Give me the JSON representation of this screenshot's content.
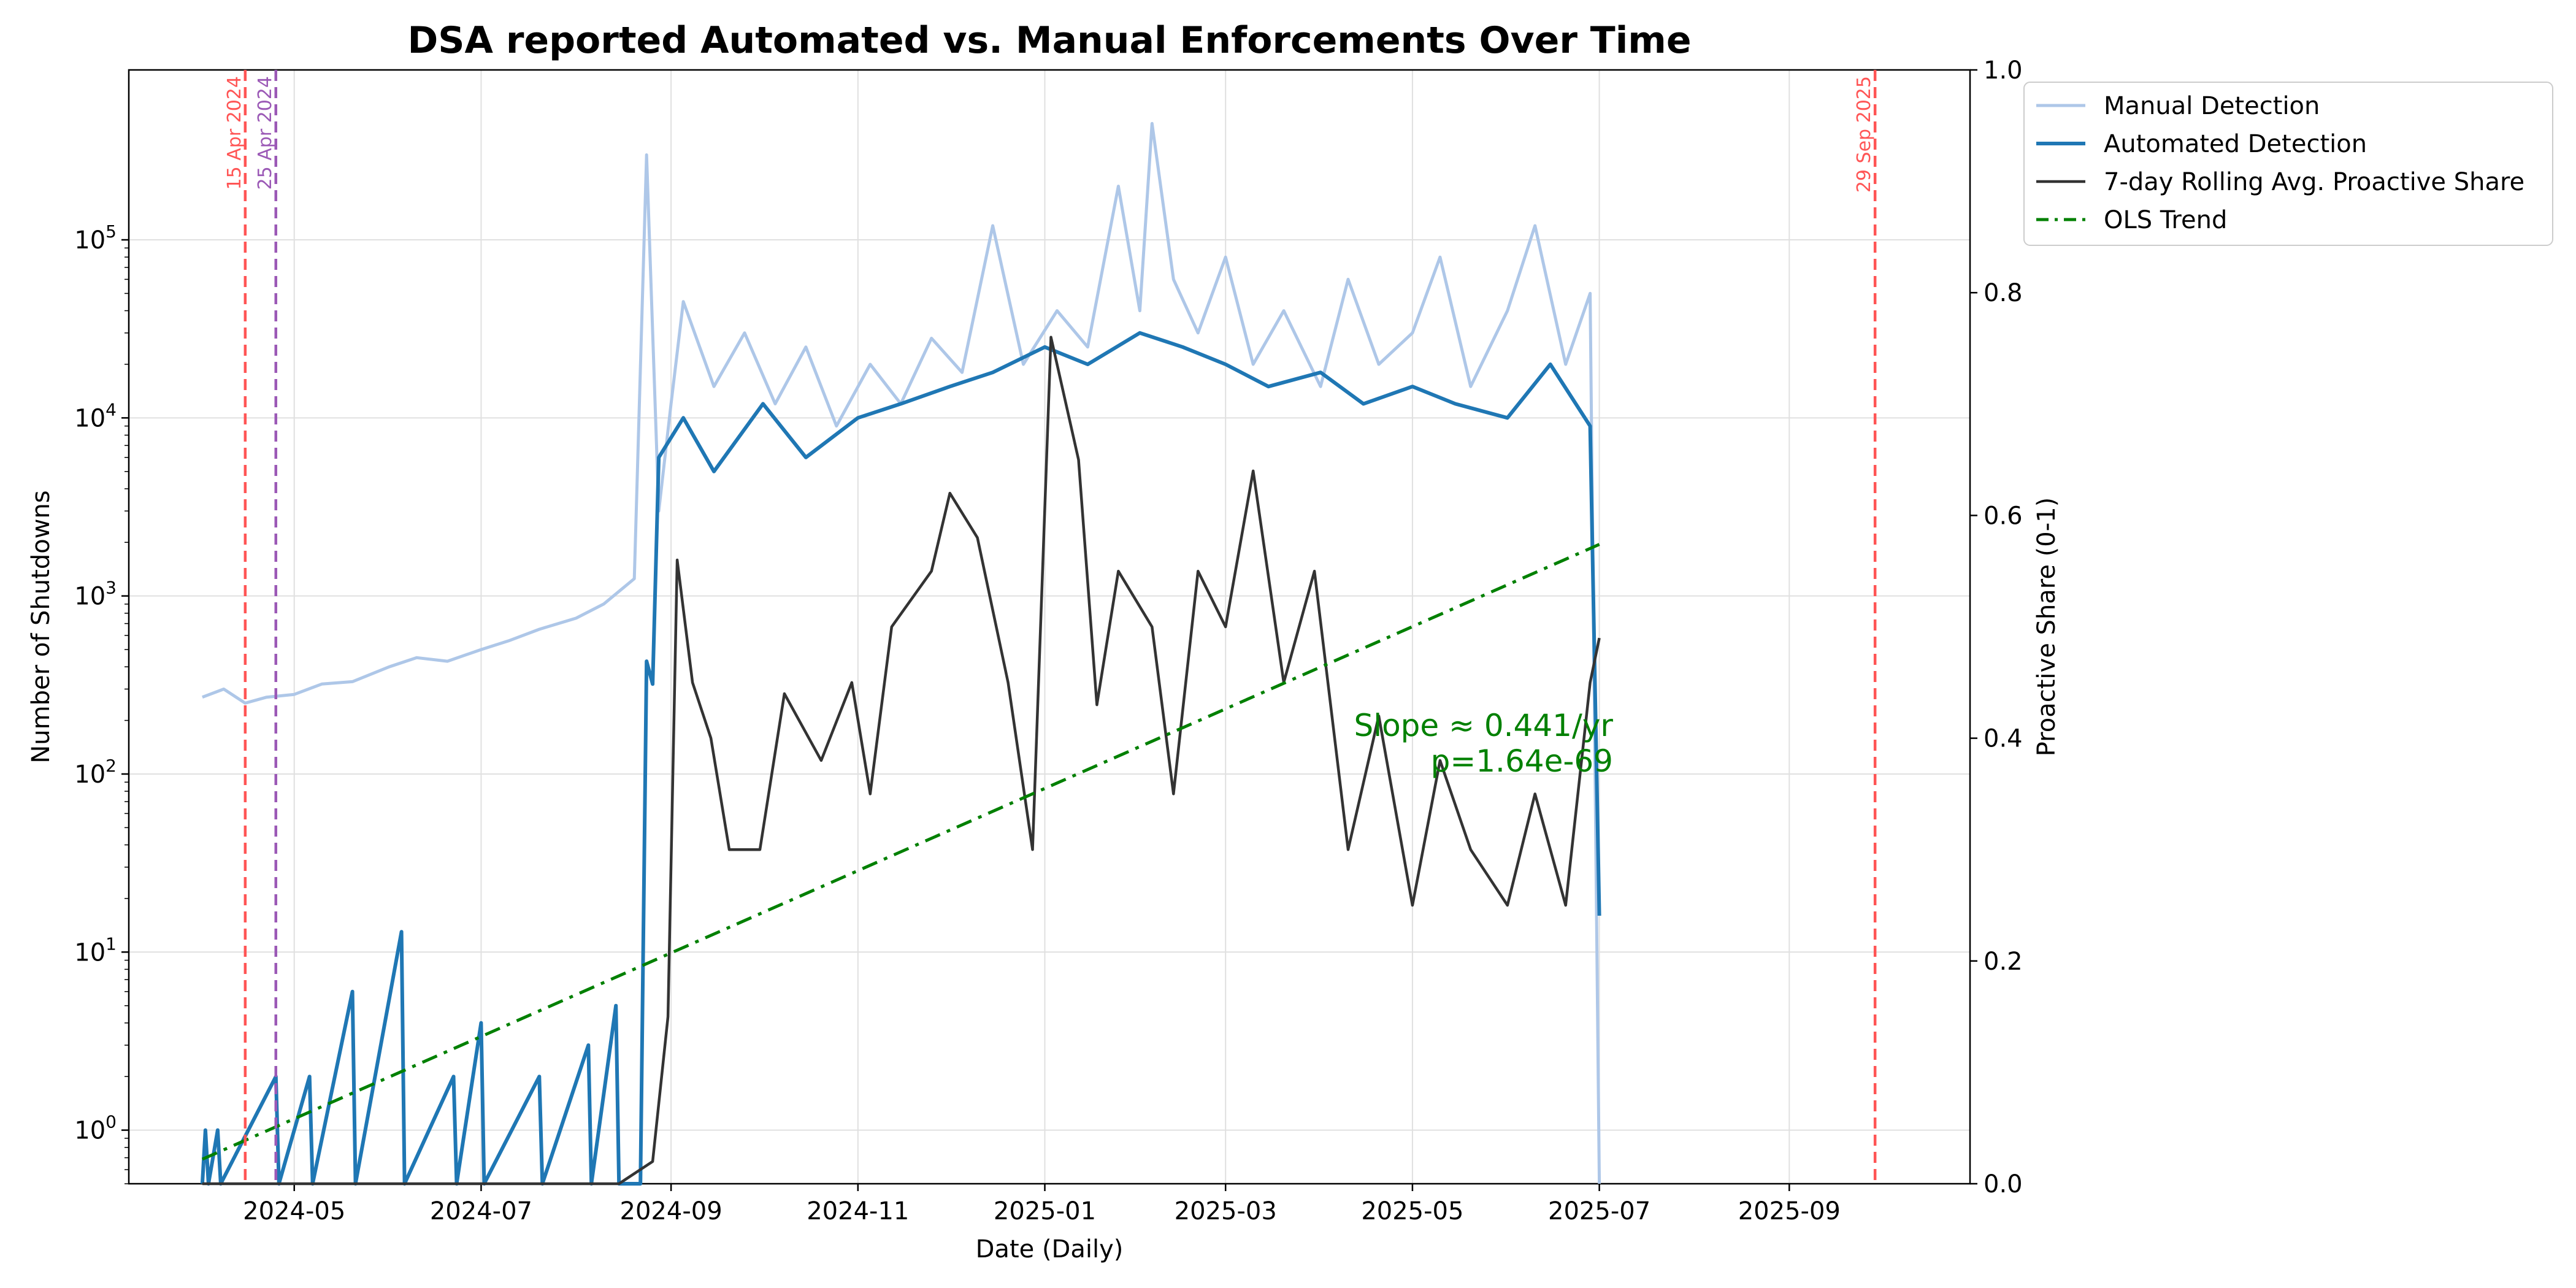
{
  "chart_data": {
    "type": "line",
    "title": "DSA reported Automated vs. Manual Enforcements Over Time",
    "xlabel": "Date (Daily)",
    "ylabel_left": "Number of Shutdowns",
    "ylabel_right": "Proactive Share (0-1)",
    "x_range": [
      "2024-03-08",
      "2025-10-30"
    ],
    "x_ticks": [
      "2024-05",
      "2024-07",
      "2024-09",
      "2024-11",
      "2025-01",
      "2025-03",
      "2025-05",
      "2025-07",
      "2025-09"
    ],
    "y_left_scale": "log",
    "y_left_range": [
      0.5,
      900000
    ],
    "y_left_ticks": [
      1,
      10,
      100,
      1000,
      10000,
      100000
    ],
    "y_left_tick_base": "10",
    "y_right_range": [
      0,
      1
    ],
    "y_right_ticks": [
      "0.0",
      "0.2",
      "0.4",
      "0.6",
      "0.8",
      "1.0"
    ],
    "grid": true,
    "legend_position": "outside-top-right",
    "series": [
      {
        "name": "Manual Detection",
        "axis": "left",
        "color": "#aec7e8",
        "points": [
          [
            "2024-04-01",
            270
          ],
          [
            "2024-04-08",
            300
          ],
          [
            "2024-04-15",
            250
          ],
          [
            "2024-04-22",
            270
          ],
          [
            "2024-05-01",
            280
          ],
          [
            "2024-05-10",
            320
          ],
          [
            "2024-05-20",
            330
          ],
          [
            "2024-06-01",
            400
          ],
          [
            "2024-06-10",
            450
          ],
          [
            "2024-06-20",
            430
          ],
          [
            "2024-07-01",
            500
          ],
          [
            "2024-07-10",
            560
          ],
          [
            "2024-07-20",
            650
          ],
          [
            "2024-08-01",
            750
          ],
          [
            "2024-08-10",
            900
          ],
          [
            "2024-08-20",
            1250
          ],
          [
            "2024-08-24",
            300000
          ],
          [
            "2024-08-28",
            3000
          ],
          [
            "2024-09-01",
            12000
          ],
          [
            "2024-09-05",
            45000
          ],
          [
            "2024-09-15",
            15000
          ],
          [
            "2024-09-25",
            30000
          ],
          [
            "2024-10-05",
            12000
          ],
          [
            "2024-10-15",
            25000
          ],
          [
            "2024-10-25",
            9000
          ],
          [
            "2024-11-05",
            20000
          ],
          [
            "2024-11-15",
            12000
          ],
          [
            "2024-11-25",
            28000
          ],
          [
            "2024-12-05",
            18000
          ],
          [
            "2024-12-15",
            120000
          ],
          [
            "2024-12-25",
            20000
          ],
          [
            "2025-01-05",
            40000
          ],
          [
            "2025-01-15",
            25000
          ],
          [
            "2025-01-25",
            200000
          ],
          [
            "2025-02-01",
            40000
          ],
          [
            "2025-02-05",
            450000
          ],
          [
            "2025-02-12",
            60000
          ],
          [
            "2025-02-20",
            30000
          ],
          [
            "2025-03-01",
            80000
          ],
          [
            "2025-03-10",
            20000
          ],
          [
            "2025-03-20",
            40000
          ],
          [
            "2025-04-01",
            15000
          ],
          [
            "2025-04-10",
            60000
          ],
          [
            "2025-04-20",
            20000
          ],
          [
            "2025-05-01",
            30000
          ],
          [
            "2025-05-10",
            80000
          ],
          [
            "2025-05-20",
            15000
          ],
          [
            "2025-06-01",
            40000
          ],
          [
            "2025-06-10",
            120000
          ],
          [
            "2025-06-20",
            20000
          ],
          [
            "2025-06-28",
            50000
          ],
          [
            "2025-07-01",
            0.5
          ]
        ]
      },
      {
        "name": "Automated Detection",
        "axis": "left",
        "color": "#1f77b4",
        "points": [
          [
            "2024-04-01",
            0.5
          ],
          [
            "2024-04-02",
            1
          ],
          [
            "2024-04-03",
            0.5
          ],
          [
            "2024-04-06",
            1
          ],
          [
            "2024-04-07",
            0.5
          ],
          [
            "2024-04-25",
            2
          ],
          [
            "2024-04-26",
            0.5
          ],
          [
            "2024-05-06",
            2
          ],
          [
            "2024-05-07",
            0.5
          ],
          [
            "2024-05-20",
            6
          ],
          [
            "2024-05-21",
            0.5
          ],
          [
            "2024-06-05",
            13
          ],
          [
            "2024-06-06",
            0.5
          ],
          [
            "2024-06-22",
            2
          ],
          [
            "2024-06-23",
            0.5
          ],
          [
            "2024-07-01",
            4
          ],
          [
            "2024-07-02",
            0.5
          ],
          [
            "2024-07-20",
            2
          ],
          [
            "2024-07-21",
            0.5
          ],
          [
            "2024-08-05",
            3
          ],
          [
            "2024-08-06",
            0.5
          ],
          [
            "2024-08-14",
            5
          ],
          [
            "2024-08-15",
            0.5
          ],
          [
            "2024-08-22",
            0.5
          ],
          [
            "2024-08-24",
            430
          ],
          [
            "2024-08-26",
            320
          ],
          [
            "2024-08-28",
            6000
          ],
          [
            "2024-09-05",
            10000
          ],
          [
            "2024-09-15",
            5000
          ],
          [
            "2024-10-01",
            12000
          ],
          [
            "2024-10-15",
            6000
          ],
          [
            "2024-11-01",
            10000
          ],
          [
            "2024-11-15",
            12000
          ],
          [
            "2024-12-01",
            15000
          ],
          [
            "2024-12-15",
            18000
          ],
          [
            "2025-01-01",
            25000
          ],
          [
            "2025-01-15",
            20000
          ],
          [
            "2025-02-01",
            30000
          ],
          [
            "2025-02-15",
            25000
          ],
          [
            "2025-03-01",
            20000
          ],
          [
            "2025-03-15",
            15000
          ],
          [
            "2025-04-01",
            18000
          ],
          [
            "2025-04-15",
            12000
          ],
          [
            "2025-05-01",
            15000
          ],
          [
            "2025-05-15",
            12000
          ],
          [
            "2025-06-01",
            10000
          ],
          [
            "2025-06-15",
            20000
          ],
          [
            "2025-06-28",
            9000
          ],
          [
            "2025-07-01",
            16
          ]
        ]
      },
      {
        "name": "7-day Rolling Avg. Proactive Share",
        "axis": "right",
        "color": "#333333",
        "points": [
          [
            "2024-04-01",
            0.0
          ],
          [
            "2024-05-01",
            0.0
          ],
          [
            "2024-06-01",
            0.0
          ],
          [
            "2024-07-01",
            0.0
          ],
          [
            "2024-08-15",
            0.0
          ],
          [
            "2024-08-26",
            0.02
          ],
          [
            "2024-08-31",
            0.15
          ],
          [
            "2024-09-03",
            0.56
          ],
          [
            "2024-09-08",
            0.45
          ],
          [
            "2024-09-14",
            0.4
          ],
          [
            "2024-09-20",
            0.3
          ],
          [
            "2024-09-30",
            0.3
          ],
          [
            "2024-10-08",
            0.44
          ],
          [
            "2024-10-20",
            0.38
          ],
          [
            "2024-10-30",
            0.45
          ],
          [
            "2024-11-05",
            0.35
          ],
          [
            "2024-11-12",
            0.5
          ],
          [
            "2024-11-25",
            0.55
          ],
          [
            "2024-12-01",
            0.62
          ],
          [
            "2024-12-10",
            0.58
          ],
          [
            "2024-12-20",
            0.45
          ],
          [
            "2024-12-28",
            0.3
          ],
          [
            "2025-01-03",
            0.76
          ],
          [
            "2025-01-12",
            0.65
          ],
          [
            "2025-01-18",
            0.43
          ],
          [
            "2025-01-25",
            0.55
          ],
          [
            "2025-02-05",
            0.5
          ],
          [
            "2025-02-12",
            0.35
          ],
          [
            "2025-02-20",
            0.55
          ],
          [
            "2025-03-01",
            0.5
          ],
          [
            "2025-03-10",
            0.64
          ],
          [
            "2025-03-20",
            0.45
          ],
          [
            "2025-03-30",
            0.55
          ],
          [
            "2025-04-10",
            0.3
          ],
          [
            "2025-04-20",
            0.42
          ],
          [
            "2025-05-01",
            0.25
          ],
          [
            "2025-05-10",
            0.38
          ],
          [
            "2025-05-20",
            0.3
          ],
          [
            "2025-06-01",
            0.25
          ],
          [
            "2025-06-10",
            0.35
          ],
          [
            "2025-06-20",
            0.25
          ],
          [
            "2025-06-28",
            0.45
          ],
          [
            "2025-07-01",
            0.49
          ]
        ]
      },
      {
        "name": "OLS Trend",
        "axis": "right",
        "color": "#008000",
        "dash": "dashdot",
        "points": [
          [
            "2024-04-01",
            0.022
          ],
          [
            "2025-07-01",
            0.574
          ]
        ]
      }
    ],
    "vlines": [
      {
        "date": "2024-04-15",
        "label": "15 Apr 2024",
        "color": "#ff5555"
      },
      {
        "date": "2024-04-25",
        "label": "25 Apr 2024",
        "color": "#9b59b6"
      },
      {
        "date": "2025-09-29",
        "label": "29 Sep 2025",
        "color": "#ff5555"
      }
    ],
    "annotation": {
      "lines": [
        "Slope ≈ 0.441/yr",
        "p=1.64e-69"
      ],
      "color": "#008000"
    }
  }
}
